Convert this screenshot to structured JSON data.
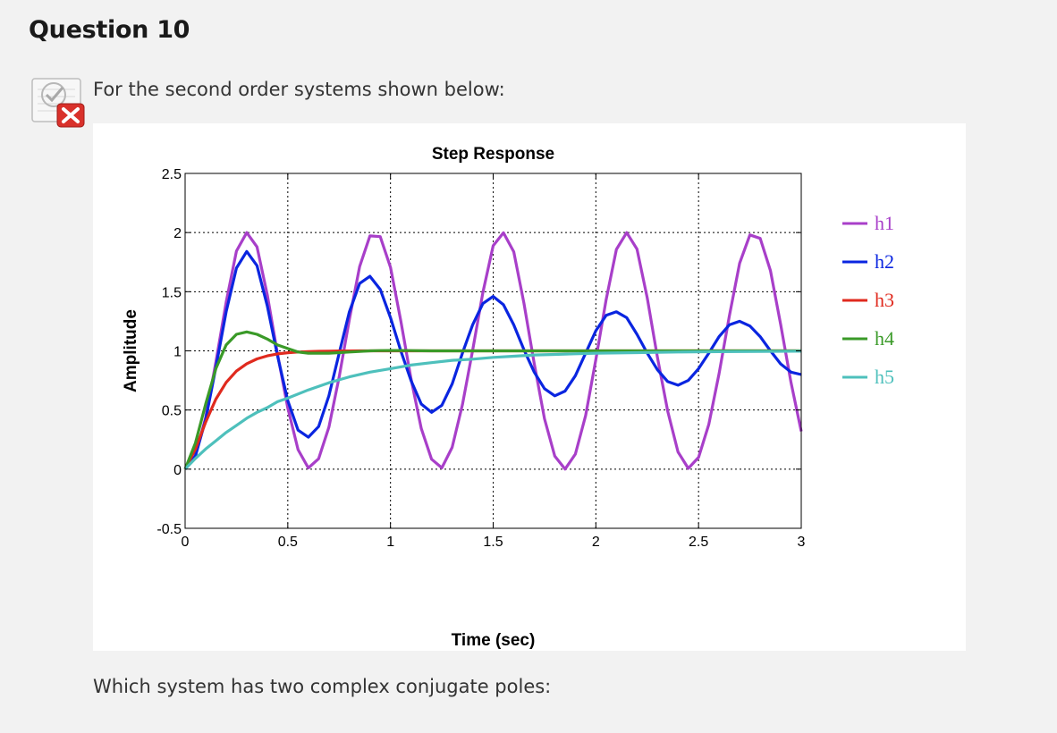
{
  "question": {
    "title": "Question 10",
    "prompt": "For the second order systems shown below:",
    "text": "Which system has two complex conjugate poles:"
  },
  "icons": {
    "status": "incorrect-answer-icon"
  },
  "colors": {
    "h1": "#a83fc9",
    "h2": "#0a25e0",
    "h3": "#e02a1e",
    "h4": "#3a9a28",
    "h5": "#4ec0bc"
  },
  "chart_data": {
    "type": "line",
    "title": "Step Response",
    "xlabel": "Time (sec)",
    "ylabel": "Amplitude",
    "xlim": [
      0,
      3
    ],
    "ylim": [
      -0.5,
      2.5
    ],
    "xticks": [
      0,
      0.5,
      1,
      1.5,
      2,
      2.5,
      3
    ],
    "xtick_labels": [
      "0",
      "0.5",
      "1",
      "1.5",
      "2",
      "2.5",
      "3"
    ],
    "yticks": [
      -0.5,
      0,
      0.5,
      1,
      1.5,
      2,
      2.5
    ],
    "ytick_labels": [
      "-0.5",
      "0",
      "0.5",
      "1",
      "1.5",
      "2",
      "2.5"
    ],
    "grid": true,
    "legend": "outside-right",
    "series": [
      {
        "name": "h1",
        "x": [
          0,
          0.05,
          0.1,
          0.15,
          0.2,
          0.25,
          0.3,
          0.35,
          0.4,
          0.45,
          0.5,
          0.55,
          0.6,
          0.65,
          0.7,
          0.75,
          0.8,
          0.85,
          0.9,
          0.95,
          1.0,
          1.05,
          1.1,
          1.15,
          1.2,
          1.25,
          1.3,
          1.35,
          1.4,
          1.45,
          1.5,
          1.55,
          1.6,
          1.65,
          1.7,
          1.75,
          1.8,
          1.85,
          1.9,
          1.95,
          2.0,
          2.05,
          2.1,
          2.15,
          2.2,
          2.25,
          2.3,
          2.35,
          2.4,
          2.45,
          2.5,
          2.55,
          2.6,
          2.65,
          2.7,
          2.75,
          2.8,
          2.85,
          2.9,
          2.95,
          3.0
        ],
        "y": [
          0,
          0.114,
          0.437,
          0.905,
          1.411,
          1.843,
          2.0,
          1.879,
          1.474,
          0.975,
          0.518,
          0.165,
          0.01,
          0.088,
          0.355,
          0.78,
          1.266,
          1.713,
          1.972,
          1.966,
          1.706,
          1.254,
          0.765,
          0.343,
          0.084,
          0.011,
          0.184,
          0.544,
          1.003,
          1.494,
          1.889,
          1.998,
          1.838,
          1.403,
          0.893,
          0.426,
          0.11,
          0.0,
          0.127,
          0.454,
          0.926,
          1.432,
          1.858,
          2.0,
          1.861,
          1.447,
          0.944,
          0.489,
          0.145,
          0.006,
          0.1,
          0.377,
          0.807,
          1.295,
          1.741,
          1.98,
          1.951,
          1.677,
          1.222,
          0.735,
          0.319
        ]
      },
      {
        "name": "h2",
        "x": [
          0,
          0.05,
          0.1,
          0.15,
          0.2,
          0.25,
          0.3,
          0.35,
          0.4,
          0.45,
          0.5,
          0.55,
          0.6,
          0.65,
          0.7,
          0.75,
          0.8,
          0.85,
          0.9,
          0.95,
          1.0,
          1.05,
          1.1,
          1.15,
          1.2,
          1.25,
          1.3,
          1.35,
          1.4,
          1.45,
          1.5,
          1.55,
          1.6,
          1.65,
          1.7,
          1.75,
          1.8,
          1.85,
          1.9,
          1.95,
          2.0,
          2.05,
          2.1,
          2.15,
          2.2,
          2.25,
          2.3,
          2.35,
          2.4,
          2.45,
          2.5,
          2.55,
          2.6,
          2.65,
          2.7,
          2.75,
          2.8,
          2.85,
          2.9,
          2.95,
          3.0
        ],
        "y": [
          0,
          0.11,
          0.42,
          0.86,
          1.33,
          1.7,
          1.84,
          1.72,
          1.38,
          0.96,
          0.58,
          0.33,
          0.27,
          0.36,
          0.62,
          0.98,
          1.33,
          1.57,
          1.63,
          1.52,
          1.28,
          1.0,
          0.75,
          0.55,
          0.48,
          0.54,
          0.72,
          0.98,
          1.22,
          1.4,
          1.46,
          1.39,
          1.22,
          1.01,
          0.82,
          0.68,
          0.62,
          0.66,
          0.79,
          0.98,
          1.17,
          1.3,
          1.33,
          1.28,
          1.14,
          0.98,
          0.84,
          0.74,
          0.71,
          0.75,
          0.85,
          0.98,
          1.12,
          1.22,
          1.25,
          1.21,
          1.12,
          1.0,
          0.89,
          0.82,
          0.8
        ]
      },
      {
        "name": "h3",
        "x": [
          0,
          0.05,
          0.1,
          0.15,
          0.2,
          0.25,
          0.3,
          0.35,
          0.4,
          0.45,
          0.5,
          0.55,
          0.6,
          0.65,
          0.7,
          0.75,
          0.8,
          0.85,
          0.9,
          0.95,
          1.0,
          1.1,
          1.2,
          1.3,
          1.4,
          1.5,
          2.0,
          2.5,
          3.0
        ],
        "y": [
          0,
          0.169,
          0.398,
          0.592,
          0.733,
          0.829,
          0.891,
          0.932,
          0.958,
          0.974,
          0.984,
          0.99,
          0.994,
          0.996,
          0.998,
          0.999,
          0.999,
          1.0,
          1.0,
          1.0,
          1.0,
          1.0,
          1.0,
          1.0,
          1.0,
          1.0,
          1.0,
          1.0,
          1.0
        ]
      },
      {
        "name": "h4",
        "x": [
          0,
          0.05,
          0.1,
          0.15,
          0.2,
          0.25,
          0.3,
          0.35,
          0.4,
          0.45,
          0.5,
          0.55,
          0.6,
          0.65,
          0.7,
          0.75,
          0.8,
          0.85,
          0.9,
          0.95,
          1.0,
          1.05,
          1.1,
          1.15,
          1.2,
          1.3,
          1.4,
          1.5,
          2.0,
          2.5,
          3.0
        ],
        "y": [
          0,
          0.22,
          0.55,
          0.85,
          1.05,
          1.14,
          1.16,
          1.14,
          1.1,
          1.05,
          1.02,
          0.99,
          0.98,
          0.98,
          0.98,
          0.985,
          0.99,
          0.995,
          1.0,
          1.002,
          1.003,
          1.003,
          1.002,
          1.001,
          1.0,
          1.0,
          1.0,
          1.0,
          1.0,
          1.0,
          1.0
        ]
      },
      {
        "name": "h5",
        "x": [
          0,
          0.05,
          0.1,
          0.15,
          0.2,
          0.25,
          0.3,
          0.35,
          0.4,
          0.45,
          0.5,
          0.6,
          0.7,
          0.8,
          0.9,
          1.0,
          1.1,
          1.2,
          1.3,
          1.4,
          1.5,
          1.6,
          1.7,
          1.8,
          1.9,
          2.0,
          2.2,
          2.4,
          2.6,
          2.8,
          3.0
        ],
        "y": [
          0,
          0.09,
          0.17,
          0.24,
          0.31,
          0.37,
          0.43,
          0.48,
          0.52,
          0.57,
          0.6,
          0.67,
          0.73,
          0.78,
          0.82,
          0.85,
          0.88,
          0.9,
          0.92,
          0.93,
          0.945,
          0.955,
          0.965,
          0.97,
          0.975,
          0.98,
          0.985,
          0.99,
          0.993,
          0.995,
          0.997
        ]
      }
    ]
  }
}
